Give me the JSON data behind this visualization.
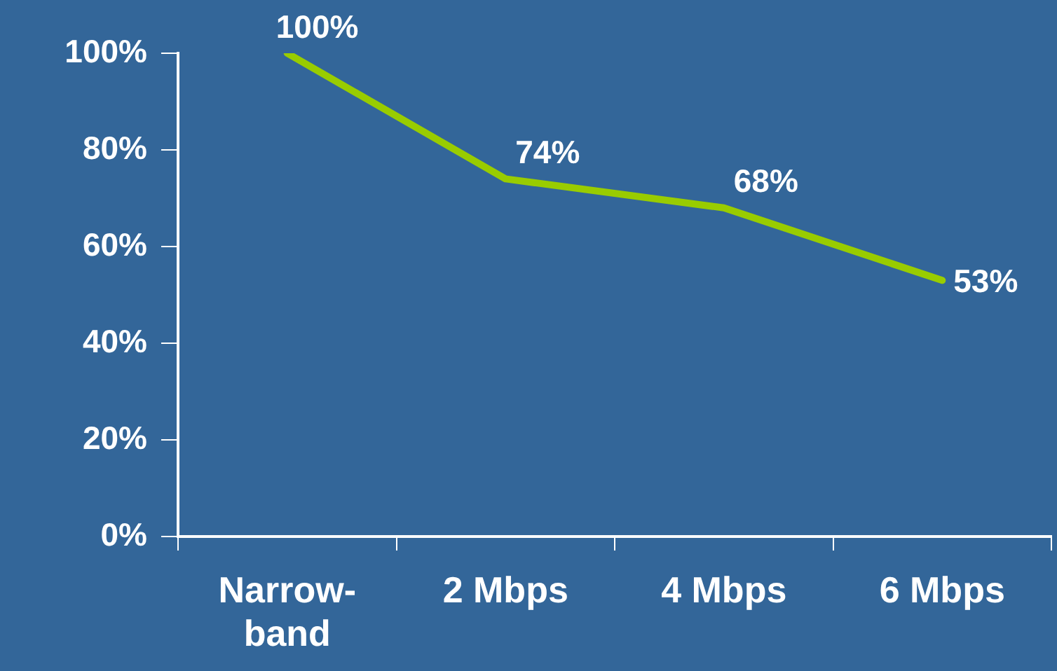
{
  "chart_data": {
    "type": "line",
    "categories": [
      "Narrow-band",
      "2 Mbps",
      "4 Mbps",
      "6 Mbps"
    ],
    "series": [
      {
        "color": "#99cc00",
        "values": [
          100,
          74,
          68,
          53
        ],
        "value_labels": [
          "100%",
          "74%",
          "68%",
          "53%"
        ]
      }
    ],
    "ylim": [
      0,
      100
    ],
    "yticks": [
      {
        "value": 0,
        "label": "0%"
      },
      {
        "value": 20,
        "label": "20%"
      },
      {
        "value": 40,
        "label": "40%"
      },
      {
        "value": 60,
        "label": "60%"
      },
      {
        "value": 80,
        "label": "80%"
      },
      {
        "value": 100,
        "label": "100%"
      }
    ],
    "legend": false,
    "marker": "none",
    "line_style": "solid"
  }
}
